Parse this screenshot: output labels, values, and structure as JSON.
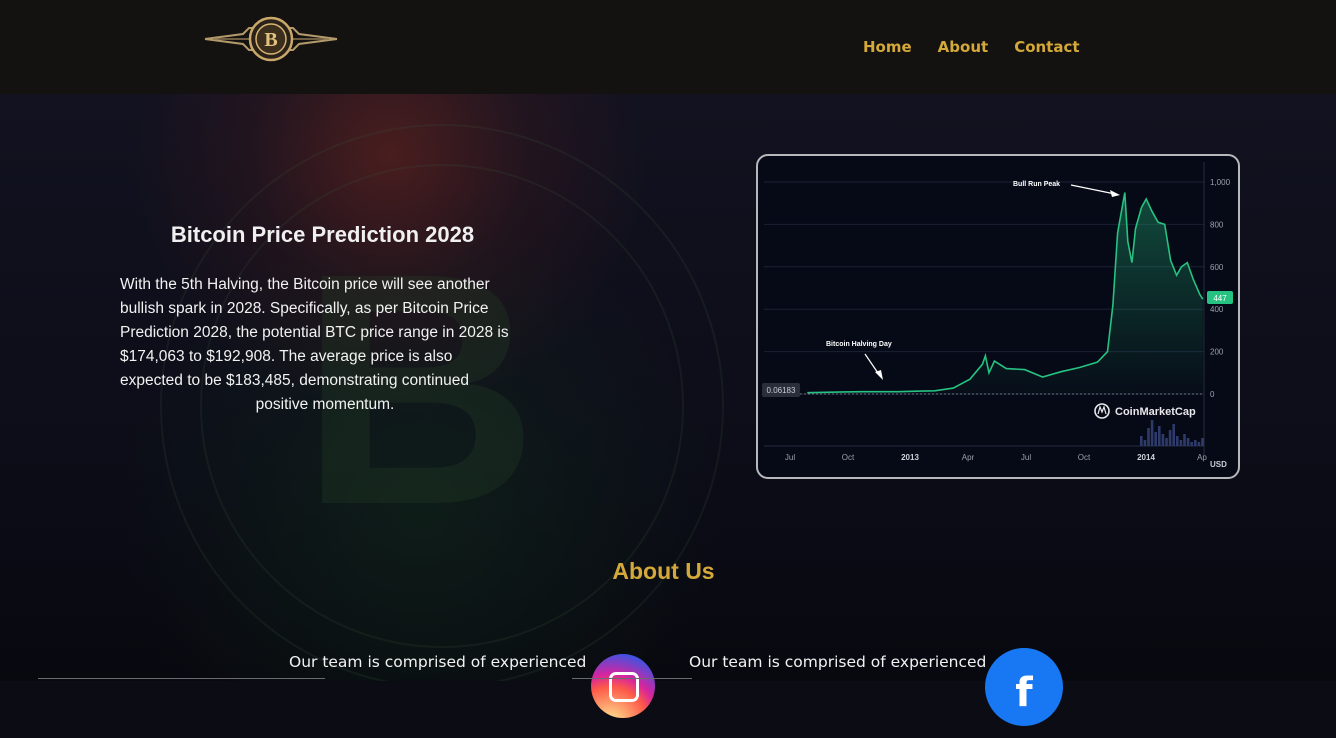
{
  "header": {
    "logo_icon": "bitcoin-emblem-logo",
    "logo_letter": "B",
    "nav": [
      {
        "label": "Home"
      },
      {
        "label": "About"
      },
      {
        "label": "Contact"
      }
    ]
  },
  "hero": {
    "title": "Bitcoin Price Prediction 2028",
    "paragraph_lines": [
      "With the 5th Halving, the Bitcoin price will see another",
      "bullish spark in 2028. Specifically, as per Bitcoin Price",
      "Prediction 2028, the potential BTC price range in 2028 is",
      "$174,063 to $192,908. The average price is also",
      "expected to be $183,485, demonstrating continued",
      "positive momentum."
    ]
  },
  "chart": {
    "watermark": "CoinMarketCap",
    "currency": "USD",
    "current_price_tag": "447",
    "start_price_tag": "0.06183",
    "annotations": [
      "Bull Run Peak",
      "Bitcoin Halving Day"
    ]
  },
  "chart_data": {
    "type": "area",
    "title": "",
    "xlabel": "",
    "ylabel": "",
    "y_ticks": [
      0,
      200,
      400,
      600,
      800,
      1000
    ],
    "y_tick_labels": [
      "0",
      "200",
      "400",
      "600",
      "800",
      "1,000"
    ],
    "x_tick_labels": [
      "Jul",
      "Oct",
      "2013",
      "Apr",
      "Jul",
      "Oct",
      "2014",
      "Ap"
    ],
    "ylim": [
      0,
      1000
    ],
    "color": "#26c281",
    "series": [
      {
        "x": [
          "2012-06",
          "2012-07",
          "2012-08",
          "2012-09",
          "2012-10",
          "2012-11",
          "2012-12",
          "2013-01",
          "2013-02",
          "2013-03",
          "2013-04-05",
          "2013-04-10",
          "2013-04-16",
          "2013-04-25",
          "2013-05",
          "2013-06",
          "2013-07",
          "2013-08",
          "2013-09",
          "2013-10",
          "2013-11-01",
          "2013-11-10",
          "2013-11-18",
          "2013-11-30",
          "2013-12-05",
          "2013-12-12",
          "2013-12-18",
          "2013-12-28",
          "2014-01-05",
          "2014-01-15",
          "2014-01-25",
          "2014-02-05",
          "2014-02-15",
          "2014-02-25",
          "2014-03-05",
          "2014-03-15",
          "2014-03-25",
          "2014-04-05",
          "2014-04-10"
        ],
        "values": [
          6,
          8,
          10,
          11,
          11,
          11,
          13,
          15,
          28,
          70,
          140,
          180,
          100,
          155,
          120,
          115,
          80,
          105,
          125,
          150,
          200,
          420,
          760,
          950,
          720,
          620,
          780,
          880,
          920,
          860,
          810,
          800,
          630,
          560,
          600,
          620,
          540,
          470,
          447
        ]
      }
    ]
  },
  "about": {
    "title": "About Us",
    "team_text_1": "Our team is comprised of experienced",
    "team_text_2": "Our team is comprised of experienced",
    "icons": [
      "instagram-icon",
      "facebook-icon"
    ],
    "facebook_glyph": "f"
  }
}
